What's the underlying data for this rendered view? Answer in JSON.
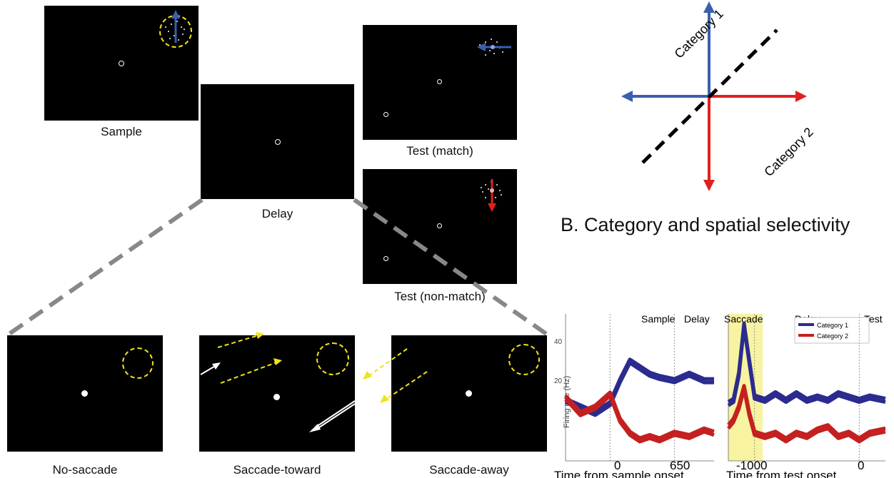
{
  "panels": {
    "sample": "Sample",
    "delay": "Delay",
    "test_match": "Test (match)",
    "test_nonmatch": "Test (non-match)",
    "no_saccade": "No-saccade",
    "saccade_toward": "Saccade-toward",
    "saccade_away": "Saccade-away"
  },
  "category_diagram": {
    "category1": "Category 1",
    "category2": "Category 2",
    "colors": {
      "category1": "#3a5fb0",
      "category2": "#e02020",
      "boundary": "#000000"
    }
  },
  "section_b": {
    "title": "B. Category and spatial selectivity"
  },
  "chart_data": [
    {
      "type": "line",
      "epochs": [
        "Sample",
        "Delay"
      ],
      "ylabel": "Firing rate (Hz)",
      "xlabel": "Time from sample onset",
      "xticks": [
        "0",
        "650"
      ],
      "yticks": [
        "20",
        "40"
      ],
      "xlim": [
        -450,
        1050
      ],
      "ylim": [
        0,
        45
      ],
      "series": [
        {
          "name": "Category 1",
          "color": "#2b2b8f",
          "x": [
            -450,
            -300,
            -150,
            0,
            100,
            200,
            300,
            400,
            500,
            650,
            800,
            950,
            1050
          ],
          "values": [
            18,
            16,
            14,
            17,
            24,
            30,
            28,
            26,
            25,
            24,
            26,
            24,
            24
          ]
        },
        {
          "name": "Category 2",
          "color": "#c42020",
          "x": [
            -450,
            -300,
            -150,
            0,
            100,
            200,
            300,
            400,
            500,
            650,
            800,
            950,
            1050
          ],
          "values": [
            20,
            15,
            17,
            21,
            13,
            9,
            7,
            8,
            7,
            9,
            8,
            10,
            9
          ]
        }
      ]
    },
    {
      "type": "line",
      "epochs": [
        "Saccade",
        "Delay",
        "Test"
      ],
      "legend": [
        "Category 1",
        "Category 2"
      ],
      "xlabel": "Time from test onset",
      "xticks": [
        "-1000",
        "0"
      ],
      "xlim": [
        -1250,
        250
      ],
      "ylim": [
        0,
        45
      ],
      "highlight": {
        "label": "Saccade",
        "color": "#f7f3a0"
      },
      "series": [
        {
          "name": "Category 1",
          "color": "#2b2b8f",
          "x": [
            -1250,
            -1200,
            -1150,
            -1100,
            -1050,
            -1000,
            -900,
            -800,
            -700,
            -600,
            -500,
            -400,
            -300,
            -200,
            -100,
            0,
            100,
            250
          ],
          "values": [
            17,
            18,
            26,
            41,
            30,
            19,
            18,
            20,
            18,
            20,
            18,
            19,
            18,
            20,
            19,
            18,
            19,
            18
          ]
        },
        {
          "name": "Category 2",
          "color": "#c42020",
          "x": [
            -1250,
            -1200,
            -1150,
            -1100,
            -1050,
            -1000,
            -900,
            -800,
            -700,
            -600,
            -500,
            -400,
            -300,
            -200,
            -100,
            0,
            100,
            250
          ],
          "values": [
            11,
            13,
            17,
            23,
            15,
            9,
            8,
            9,
            7,
            9,
            8,
            10,
            11,
            8,
            9,
            7,
            9,
            10
          ]
        }
      ]
    }
  ]
}
